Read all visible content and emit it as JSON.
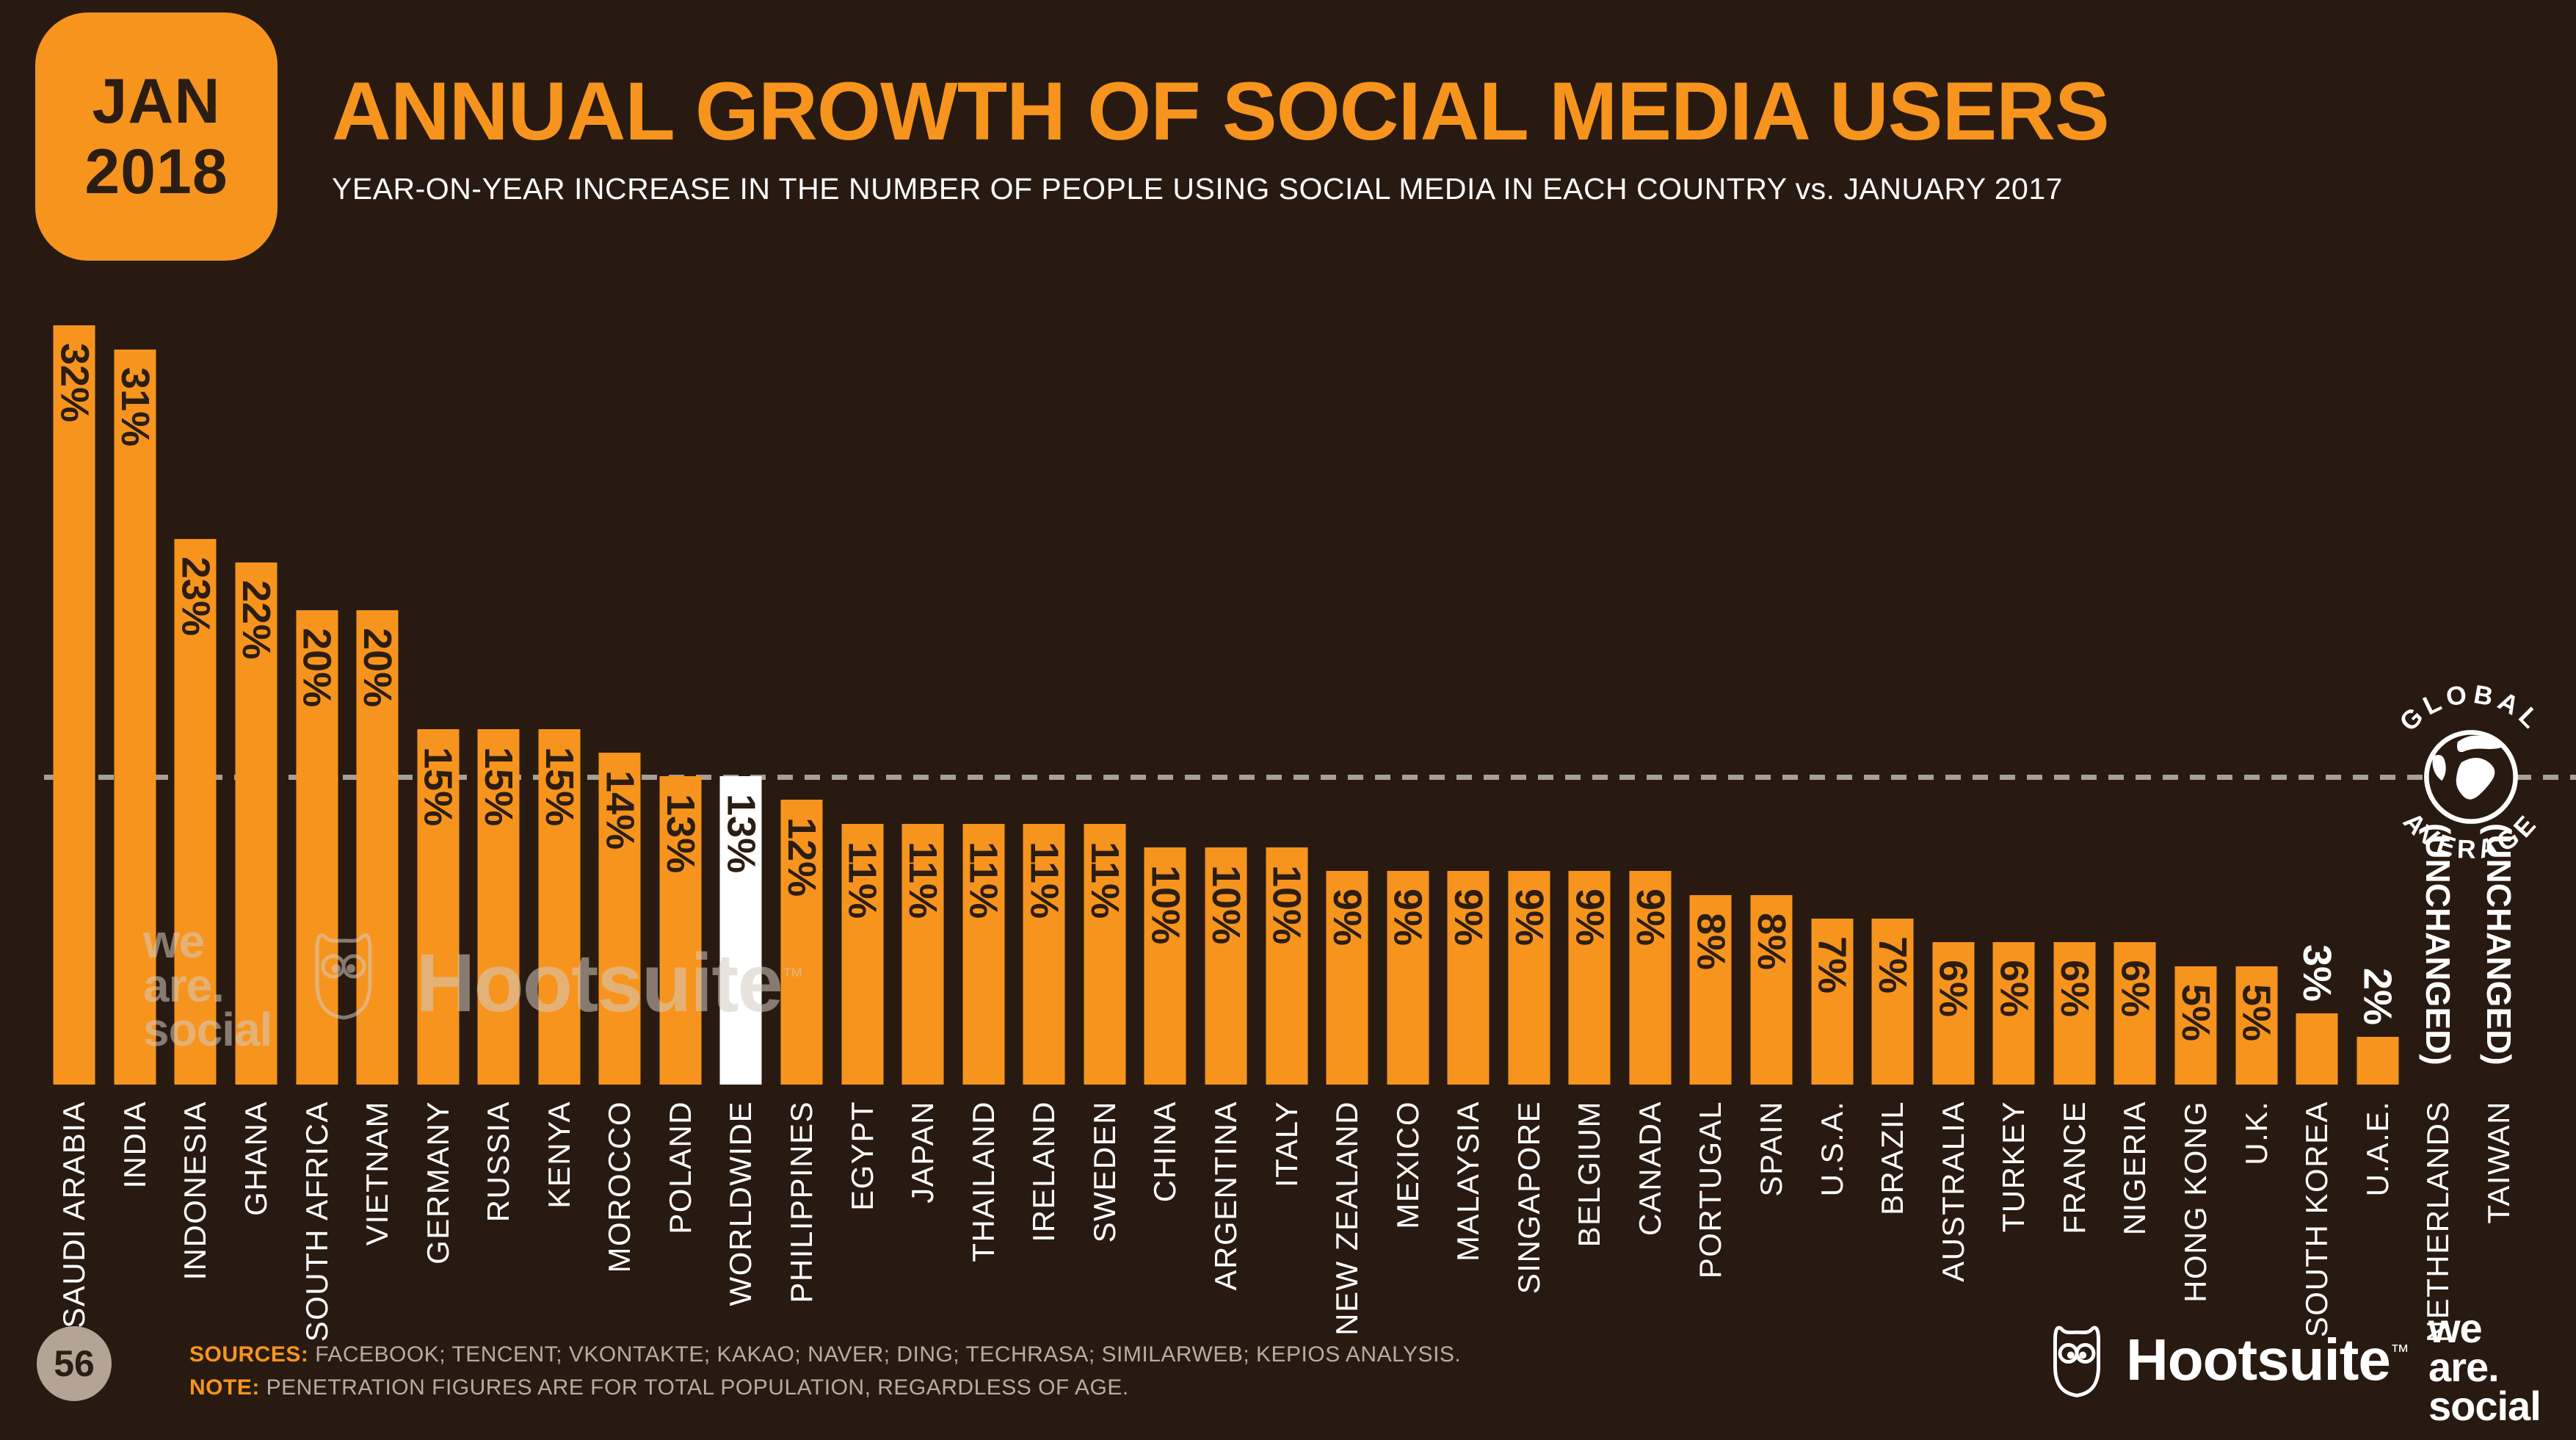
{
  "header": {
    "badge": {
      "line1": "JAN",
      "line2": "2018"
    },
    "title": "ANNUAL GROWTH OF SOCIAL MEDIA USERS",
    "subtitle": "YEAR-ON-YEAR INCREASE IN THE NUMBER OF PEOPLE USING SOCIAL MEDIA IN EACH COUNTRY vs. JANUARY 2017"
  },
  "chart_data": {
    "type": "bar",
    "unit": "percent",
    "title": "ANNUAL GROWTH OF SOCIAL MEDIA USERS",
    "categories": [
      "SAUDI ARABIA",
      "INDIA",
      "INDONESIA",
      "GHANA",
      "SOUTH AFRICA",
      "VIETNAM",
      "GERMANY",
      "RUSSIA",
      "KENYA",
      "MOROCCO",
      "POLAND",
      "WORLDWIDE",
      "PHILIPPINES",
      "EGYPT",
      "JAPAN",
      "THAILAND",
      "IRELAND",
      "SWEDEN",
      "CHINA",
      "ARGENTINA",
      "ITALY",
      "NEW ZEALAND",
      "MEXICO",
      "MALAYSIA",
      "SINGAPORE",
      "BELGIUM",
      "CANADA",
      "PORTUGAL",
      "SPAIN",
      "U.S.A.",
      "BRAZIL",
      "AUSTRALIA",
      "TURKEY",
      "FRANCE",
      "NIGERIA",
      "HONG KONG",
      "U.K.",
      "SOUTH KOREA",
      "U.A.E.",
      "NETHERLANDS",
      "TAIWAN"
    ],
    "values": [
      32,
      31,
      23,
      22,
      20,
      20,
      15,
      15,
      15,
      14,
      13,
      13,
      12,
      11,
      11,
      11,
      11,
      11,
      10,
      10,
      10,
      9,
      9,
      9,
      9,
      9,
      9,
      8,
      8,
      7,
      7,
      6,
      6,
      6,
      6,
      5,
      5,
      3,
      2,
      null,
      null
    ],
    "bar_labels": [
      "32%",
      "31%",
      "23%",
      "22%",
      "20%",
      "20%",
      "15%",
      "15%",
      "15%",
      "14%",
      "13%",
      "13%",
      "12%",
      "11%",
      "11%",
      "11%",
      "11%",
      "11%",
      "10%",
      "10%",
      "10%",
      "9%",
      "9%",
      "9%",
      "9%",
      "9%",
      "9%",
      "8%",
      "8%",
      "7%",
      "7%",
      "6%",
      "6%",
      "6%",
      "6%",
      "5%",
      "5%",
      "3%",
      "2%",
      "(UNCHANGED)",
      "(UNCHANGED)"
    ],
    "highlight_category": "WORLDWIDE",
    "white_label_max_value": 3,
    "reference_line": {
      "value": 13,
      "label_top": "GLOBAL",
      "label_bottom": "AVERAGE"
    },
    "ylim": [
      0,
      33
    ],
    "grid": false,
    "legend": "none",
    "colors": {
      "bar": "#F7941E",
      "highlight_bar": "#FFFFFF",
      "value_label": "#2B1D12",
      "country_label": "#FFFFFF",
      "reference_line": "#A5A098",
      "background": "#281A11"
    }
  },
  "watermark": {
    "we": "we",
    "are": "are.",
    "social": "social",
    "brand": "Hootsuite",
    "tm": "™"
  },
  "footer": {
    "page_number": "56",
    "sources_label": "SOURCES:",
    "sources_text": " FACEBOOK; TENCENT; VKONTAKTE; KAKAO; NAVER; DING; TECHRASA; SIMILARWEB; KEPIOS ANALYSIS.",
    "note_label": "NOTE:",
    "note_text": " PENETRATION FIGURES ARE FOR TOTAL POPULATION, REGARDLESS OF AGE.",
    "hootsuite_wordmark": "Hootsuite",
    "hootsuite_tm": "™",
    "wearesocial": {
      "line1": "we",
      "line2": "are.",
      "line3": "social"
    }
  }
}
